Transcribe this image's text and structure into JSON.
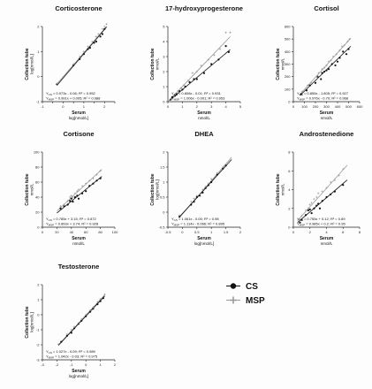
{
  "legend": [
    {
      "label": "CS",
      "color": "#111111"
    },
    {
      "label": "MSP",
      "color": "#9a9a9a"
    }
  ],
  "chart_data": [
    {
      "type": "scatter",
      "title": "Corticosterone",
      "xlabel": "Serum",
      "xunit": "log[nmol/L]",
      "ylabel": "Collection tube",
      "yunit": "log[nmol/L]",
      "xlim": [
        -1,
        2.5
      ],
      "ylim": [
        -1,
        2
      ],
      "xticks": [
        -1,
        "",
        0,
        "",
        1,
        "",
        2,
        ""
      ],
      "yticks": [
        -1,
        0,
        1,
        2
      ],
      "eq_cs": "Y_CS = 0.973x - 0.06; R² = 0.952",
      "eq_msp": "Y_MSP = 0.991x + 0.005; R² = 0.988",
      "cs_fit": [
        0.973,
        -0.06
      ],
      "msp_fit": [
        0.991,
        0.005
      ],
      "fit_range": [
        -0.3,
        2.1
      ],
      "series": [
        {
          "name": "CS",
          "x": [
            -0.3,
            0.5,
            0.8,
            1.0,
            1.2,
            1.3,
            1.5,
            1.6,
            1.8,
            1.9,
            2.0
          ],
          "y": [
            -0.3,
            0.45,
            0.7,
            0.9,
            1.1,
            1.15,
            1.35,
            1.4,
            1.6,
            1.7,
            1.9
          ]
        },
        {
          "name": "MSP",
          "x": [
            -0.3,
            0.5,
            0.8,
            1.0,
            1.2,
            1.4,
            1.6,
            1.7,
            1.9,
            2.0,
            2.1
          ],
          "y": [
            -0.28,
            0.5,
            0.8,
            1.0,
            1.2,
            1.4,
            1.6,
            1.7,
            1.9,
            2.0,
            2.1
          ]
        }
      ]
    },
    {
      "type": "scatter",
      "title": "17-hydroxyprogesterone",
      "xlabel": "Serum",
      "xunit": "nmol/L",
      "ylabel": "Collection tube",
      "yunit": "nmol/L",
      "xlim": [
        0,
        5
      ],
      "ylim": [
        0,
        5
      ],
      "xticks": [
        0,
        1,
        2,
        3,
        4,
        5
      ],
      "yticks": [
        0,
        1,
        2,
        3,
        4,
        5
      ],
      "eq_cs": "Y_CS = 0.808x - 0.01; R² = 0.931",
      "eq_msp": "Y_MSP = 1.006x - 0.001; R² = 0.953",
      "cs_fit": [
        0.808,
        -0.01
      ],
      "msp_fit": [
        1.006,
        -0.001
      ],
      "fit_range": [
        0.1,
        4.3
      ],
      "series": [
        {
          "name": "CS",
          "x": [
            0.2,
            0.3,
            0.5,
            0.6,
            0.8,
            1.0,
            1.2,
            1.5,
            1.8,
            2.0,
            2.5,
            3.0,
            3.5,
            4.0,
            4.2
          ],
          "y": [
            0.15,
            0.3,
            0.4,
            0.5,
            0.7,
            0.8,
            1.0,
            1.3,
            1.5,
            1.5,
            1.9,
            2.5,
            2.8,
            3.7,
            3.3
          ]
        },
        {
          "name": "MSP",
          "x": [
            0.2,
            0.4,
            0.5,
            0.7,
            0.9,
            1.1,
            1.4,
            1.7,
            2.0,
            2.3,
            2.8,
            3.2,
            3.6,
            4.0,
            4.3
          ],
          "y": [
            0.2,
            0.4,
            0.5,
            0.7,
            0.9,
            1.1,
            1.4,
            1.9,
            2.0,
            2.4,
            2.8,
            3.1,
            3.5,
            4.6,
            4.6
          ]
        }
      ]
    },
    {
      "type": "scatter",
      "title": "Cortisol",
      "xlabel": "Serum",
      "xunit": "nmol/L",
      "ylabel": "Collection tube",
      "yunit": "nmol/L",
      "xlim": [
        0,
        600
      ],
      "ylim": [
        0,
        600
      ],
      "xticks": [
        0,
        100,
        200,
        300,
        400,
        500,
        600
      ],
      "yticks": [
        0,
        100,
        200,
        300,
        400,
        500,
        600
      ],
      "eq_cs": "Y_CS = 0.855x - 1.805; R² = 0.927",
      "eq_msp": "Y_MSP = 0.976x - 0.70; R² = 0.968",
      "cs_fit": [
        0.855,
        -1.805
      ],
      "msp_fit": [
        0.976,
        -0.7
      ],
      "fit_range": [
        60,
        520
      ],
      "series": [
        {
          "name": "CS",
          "x": [
            70,
            120,
            150,
            200,
            220,
            250,
            260,
            280,
            300,
            320,
            350,
            380,
            400,
            420,
            450,
            480,
            500
          ],
          "y": [
            60,
            90,
            130,
            150,
            200,
            180,
            230,
            240,
            250,
            260,
            300,
            290,
            320,
            350,
            400,
            380,
            420
          ]
        },
        {
          "name": "MSP",
          "x": [
            80,
            130,
            160,
            210,
            230,
            260,
            280,
            300,
            320,
            340,
            360,
            390,
            420,
            440,
            460,
            490,
            510
          ],
          "y": [
            80,
            130,
            150,
            200,
            230,
            260,
            270,
            290,
            320,
            330,
            360,
            380,
            410,
            440,
            450,
            480,
            500
          ]
        }
      ]
    },
    {
      "type": "scatter",
      "title": "Cortisone",
      "xlabel": "Serum",
      "xunit": "nmol/L",
      "ylabel": "Collection tube",
      "yunit": "nmol/L",
      "xlim": [
        0,
        100
      ],
      "ylim": [
        0,
        100
      ],
      "xticks": [
        0,
        20,
        40,
        60,
        80,
        100
      ],
      "yticks": [
        0,
        20,
        40,
        60,
        80,
        100
      ],
      "eq_cs": "Y_CS = 0.785x + 3.15; R² = 0.872",
      "eq_msp": "Y_MSP = 0.893x + 3.74; R² = 0.928",
      "cs_fit": [
        0.785,
        3.15
      ],
      "msp_fit": [
        0.893,
        3.74
      ],
      "fit_range": [
        20,
        82
      ],
      "series": [
        {
          "name": "CS",
          "x": [
            25,
            30,
            35,
            38,
            40,
            42,
            45,
            48,
            50,
            55,
            60,
            65,
            70,
            75,
            80
          ],
          "y": [
            25,
            28,
            30,
            35,
            38,
            34,
            40,
            42,
            38,
            45,
            48,
            55,
            58,
            62,
            65
          ]
        },
        {
          "name": "MSP",
          "x": [
            25,
            30,
            35,
            38,
            40,
            42,
            45,
            48,
            50,
            55,
            60,
            65,
            70,
            75,
            80
          ],
          "y": [
            28,
            30,
            35,
            40,
            42,
            40,
            45,
            48,
            50,
            55,
            58,
            62,
            65,
            70,
            75
          ]
        }
      ]
    },
    {
      "type": "scatter",
      "title": "DHEA",
      "xlabel": "Serum",
      "xunit": "log[nmol/L]",
      "ylabel": "Collection tube",
      "yunit": "log[nmol/L]",
      "xlim": [
        -0.5,
        2
      ],
      "ylim": [
        -0.5,
        2
      ],
      "xticks": [
        -0.5,
        0,
        0.5,
        1,
        1.5,
        2
      ],
      "yticks": [
        -0.5,
        0,
        0.5,
        1,
        1.5,
        2
      ],
      "eq_cs": "Y_CS = 1.061x - 0.05; R² = 0.98",
      "eq_msp": "Y_MSP = 1.114x - 0.066; R² = 0.895",
      "cs_fit": [
        1.061,
        -0.05
      ],
      "msp_fit": [
        1.114,
        -0.066
      ],
      "fit_range": [
        -0.1,
        1.7
      ],
      "series": [
        {
          "name": "CS",
          "x": [
            -0.1,
            0.3,
            0.4,
            0.5,
            0.6,
            0.7,
            0.8,
            0.9,
            1.0,
            1.2,
            1.4,
            1.5
          ],
          "y": [
            -0.15,
            0.25,
            0.35,
            0.5,
            0.55,
            0.65,
            0.8,
            0.9,
            1.0,
            1.25,
            1.45,
            1.55
          ]
        },
        {
          "name": "MSP",
          "x": [
            -0.1,
            0.3,
            0.4,
            0.5,
            0.6,
            0.7,
            0.8,
            0.9,
            1.0,
            1.2,
            1.4,
            1.6
          ],
          "y": [
            -0.1,
            0.35,
            0.45,
            0.55,
            0.6,
            0.75,
            0.85,
            0.95,
            1.1,
            1.3,
            1.5,
            1.65
          ]
        }
      ]
    },
    {
      "type": "scatter",
      "title": "Androstenedione",
      "xlabel": "Serum",
      "xunit": "nmol/L",
      "ylabel": "Collection tube",
      "yunit": "nmol/L",
      "xlim": [
        0,
        8
      ],
      "ylim": [
        0,
        8
      ],
      "xticks": [
        0,
        2,
        4,
        6,
        8
      ],
      "yticks": [
        0,
        2,
        4,
        6,
        8
      ],
      "eq_cs": "Y_CS = 0.755x + 0.12; R² = 0.89",
      "eq_msp": "Y_MSP = 0.985x + 0.2; R² = 0.95",
      "cs_fit": [
        0.755,
        0.12
      ],
      "msp_fit": [
        0.985,
        0.2
      ],
      "fit_range": [
        0.5,
        6.5
      ],
      "series": [
        {
          "name": "CS",
          "x": [
            0.8,
            1.0,
            1.5,
            1.8,
            2.0,
            2.2,
            2.5,
            2.8,
            3.0,
            3.2,
            3.5,
            4.0,
            4.5,
            5.0,
            6.0
          ],
          "y": [
            0.5,
            0.8,
            1.3,
            1.8,
            1.9,
            1.5,
            2.0,
            2.3,
            2.5,
            2.0,
            2.8,
            3.2,
            3.5,
            3.8,
            4.5
          ]
        },
        {
          "name": "MSP",
          "x": [
            0.8,
            1.0,
            1.5,
            1.8,
            2.0,
            2.2,
            2.5,
            2.8,
            3.0,
            3.5,
            4.0,
            4.5,
            5.0,
            5.5,
            6.0
          ],
          "y": [
            0.8,
            1.2,
            1.8,
            2.0,
            2.4,
            2.6,
            3.0,
            3.2,
            3.6,
            3.8,
            4.2,
            4.8,
            5.0,
            5.5,
            6.2
          ]
        }
      ]
    },
    {
      "type": "scatter",
      "title": "Testosterone",
      "xlabel": "Serum",
      "xunit": "log[nmol/L]",
      "ylabel": "Collection tube",
      "yunit": "log[nmol/L]",
      "xlim": [
        -3,
        2
      ],
      "ylim": [
        -3,
        2
      ],
      "xticks": [
        -3,
        -2,
        -1,
        0,
        1,
        2
      ],
      "yticks": [
        -3,
        -2,
        -1,
        0,
        1,
        2
      ],
      "eq_cs": "Y_CS = 1.027x - 0.09; R² = 0.989",
      "eq_msp": "Y_MSP = 1.042x - 0.03; R² = 0.975",
      "cs_fit": [
        1.027,
        -0.09
      ],
      "msp_fit": [
        1.042,
        -0.03
      ],
      "fit_range": [
        -1.9,
        1.3
      ],
      "series": [
        {
          "name": "CS",
          "x": [
            -1.7,
            -1.3,
            -1.0,
            -0.8,
            -0.5,
            -0.3,
            0.0,
            0.3,
            0.5,
            0.8,
            1.0,
            1.2
          ],
          "y": [
            -1.8,
            -1.4,
            -1.2,
            -0.9,
            -0.6,
            -0.4,
            -0.1,
            0.2,
            0.4,
            0.7,
            0.9,
            1.1
          ]
        },
        {
          "name": "MSP",
          "x": [
            -1.9,
            -1.3,
            -1.0,
            -0.8,
            -0.5,
            -0.3,
            0.0,
            0.3,
            0.5,
            0.8,
            1.0,
            1.3
          ],
          "y": [
            -1.95,
            -1.3,
            -1.0,
            -0.8,
            -0.55,
            -0.3,
            0.0,
            0.3,
            0.5,
            0.85,
            1.05,
            1.35
          ]
        }
      ]
    }
  ]
}
